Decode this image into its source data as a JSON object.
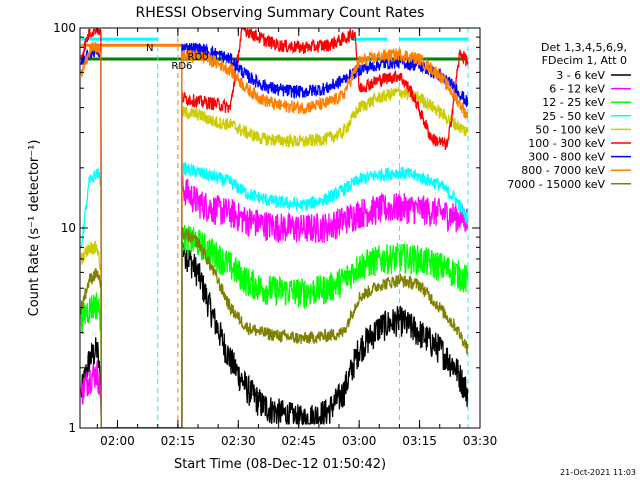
{
  "chart_data": {
    "type": "line",
    "title": "RHESSI Observing Summary Count Rates",
    "xlabel": "Start Time (08-Dec-12 01:50:42)",
    "ylabel": "Count Rate (s⁻¹ detector⁻¹)",
    "x_ticks": [
      "02:00",
      "02:15",
      "02:30",
      "02:45",
      "03:00",
      "03:15",
      "03:30"
    ],
    "xlim": [
      "01:50:42",
      "03:30:00"
    ],
    "y_scale": "log",
    "ylim": [
      1,
      100
    ],
    "y_ticks": [
      "1",
      "10",
      "100"
    ],
    "legend_header": [
      "Det 1,3,4,5,6,9,",
      "FDecim 1, Att 0"
    ],
    "legend_position": "right",
    "timestamp": "21-Oct-2021 11:03",
    "grid": false,
    "annotations": [
      {
        "text": "N",
        "time": "02:08"
      },
      {
        "text": "RD6",
        "time": "02:16"
      },
      {
        "text": "RD0",
        "time": "02:20"
      }
    ],
    "orbit_markers": [
      {
        "time": "02:10",
        "color": "#00ffff",
        "style": "dashed"
      },
      {
        "time": "02:15",
        "color": "#ff7f00",
        "style": "dashed"
      },
      {
        "time": "03:10",
        "color": "#00ffff",
        "style": "dashed"
      },
      {
        "time": "03:27",
        "color": "#00ffff",
        "style": "dashed"
      }
    ],
    "state_bars": [
      {
        "name": "N",
        "color": "#00ffff",
        "y": 88,
        "segments": [
          [
            "01:51",
            "02:10"
          ],
          [
            "02:58",
            "03:07"
          ],
          [
            "03:10",
            "03:27"
          ]
        ]
      },
      {
        "name": "orange",
        "color": "#ff7f00",
        "y": 82,
        "segments": [
          [
            "01:51",
            "02:16"
          ]
        ]
      },
      {
        "name": "RD",
        "color": "#008000",
        "y": 70,
        "segments": [
          [
            "01:51",
            "03:27"
          ]
        ]
      }
    ],
    "data_gaps": [
      [
        "01:58",
        "02:16"
      ]
    ],
    "series": [
      {
        "name": "3 - 6 keV",
        "color": "#000000",
        "points": [
          [
            "01:51",
            1.5
          ],
          [
            "01:53",
            2.2
          ],
          [
            "01:55",
            2.5
          ],
          [
            "01:56",
            1.5
          ],
          [
            "02:16",
            8.0
          ],
          [
            "02:20",
            6.0
          ],
          [
            "02:24",
            3.5
          ],
          [
            "02:28",
            2.2
          ],
          [
            "02:32",
            1.6
          ],
          [
            "02:36",
            1.3
          ],
          [
            "02:40",
            1.2
          ],
          [
            "02:46",
            1.1
          ],
          [
            "02:52",
            1.2
          ],
          [
            "02:56",
            1.5
          ],
          [
            "03:00",
            2.5
          ],
          [
            "03:05",
            3.2
          ],
          [
            "03:10",
            3.5
          ],
          [
            "03:15",
            3.0
          ],
          [
            "03:20",
            2.5
          ],
          [
            "03:24",
            2.0
          ],
          [
            "03:27",
            1.5
          ]
        ]
      },
      {
        "name": "6 - 12 keV",
        "color": "#ff00ff",
        "points": [
          [
            "01:51",
            1.5
          ],
          [
            "01:53",
            1.8
          ],
          [
            "01:55",
            1.9
          ],
          [
            "01:56",
            1.5
          ],
          [
            "02:16",
            16.0
          ],
          [
            "02:20",
            13.5
          ],
          [
            "02:24",
            12.5
          ],
          [
            "02:28",
            12.0
          ],
          [
            "02:32",
            11.0
          ],
          [
            "02:36",
            10.5
          ],
          [
            "02:40",
            10.2
          ],
          [
            "02:46",
            10.0
          ],
          [
            "02:52",
            10.2
          ],
          [
            "02:56",
            11.0
          ],
          [
            "03:00",
            12.0
          ],
          [
            "03:05",
            12.5
          ],
          [
            "03:10",
            12.8
          ],
          [
            "03:15",
            12.5
          ],
          [
            "03:20",
            12.0
          ],
          [
            "03:24",
            11.5
          ],
          [
            "03:27",
            11.0
          ]
        ]
      },
      {
        "name": "12 - 25 keV",
        "color": "#00ff00",
        "points": [
          [
            "01:51",
            3.5
          ],
          [
            "01:53",
            4.0
          ],
          [
            "01:55",
            4.2
          ],
          [
            "01:56",
            3.5
          ],
          [
            "02:16",
            9.0
          ],
          [
            "02:20",
            8.5
          ],
          [
            "02:24",
            7.5
          ],
          [
            "02:28",
            6.5
          ],
          [
            "02:32",
            5.5
          ],
          [
            "02:36",
            5.0
          ],
          [
            "02:40",
            4.9
          ],
          [
            "02:46",
            4.8
          ],
          [
            "02:52",
            5.0
          ],
          [
            "02:56",
            5.5
          ],
          [
            "03:00",
            6.5
          ],
          [
            "03:05",
            7.0
          ],
          [
            "03:10",
            7.2
          ],
          [
            "03:15",
            7.0
          ],
          [
            "03:20",
            6.5
          ],
          [
            "03:24",
            6.0
          ],
          [
            "03:27",
            5.5
          ]
        ]
      },
      {
        "name": "25 - 50 keV",
        "color": "#00ffff",
        "points": [
          [
            "01:51",
            8.0
          ],
          [
            "01:53",
            17.0
          ],
          [
            "01:55",
            19.0
          ],
          [
            "01:56",
            17.0
          ],
          [
            "02:16",
            20.0
          ],
          [
            "02:20",
            19.0
          ],
          [
            "02:24",
            18.0
          ],
          [
            "02:28",
            17.0
          ],
          [
            "02:32",
            15.0
          ],
          [
            "02:36",
            14.0
          ],
          [
            "02:40",
            13.5
          ],
          [
            "02:46",
            13.0
          ],
          [
            "02:52",
            14.0
          ],
          [
            "02:56",
            15.5
          ],
          [
            "03:00",
            17.5
          ],
          [
            "03:05",
            18.5
          ],
          [
            "03:10",
            19.0
          ],
          [
            "03:15",
            18.0
          ],
          [
            "03:20",
            16.5
          ],
          [
            "03:24",
            14.0
          ],
          [
            "03:27",
            11.0
          ]
        ]
      },
      {
        "name": "50 - 100 keV",
        "color": "#cccc00",
        "points": [
          [
            "01:51",
            7.0
          ],
          [
            "01:53",
            8.0
          ],
          [
            "01:55",
            8.0
          ],
          [
            "01:56",
            6.0
          ],
          [
            "02:16",
            38.0
          ],
          [
            "02:20",
            37.0
          ],
          [
            "02:24",
            34.0
          ],
          [
            "02:28",
            33.0
          ],
          [
            "02:32",
            30.0
          ],
          [
            "02:36",
            28.0
          ],
          [
            "02:40",
            27.5
          ],
          [
            "02:46",
            27.0
          ],
          [
            "02:52",
            28.0
          ],
          [
            "02:56",
            30.0
          ],
          [
            "03:00",
            40.0
          ],
          [
            "03:05",
            45.0
          ],
          [
            "03:10",
            48.0
          ],
          [
            "03:15",
            45.0
          ],
          [
            "03:20",
            38.0
          ],
          [
            "03:24",
            33.0
          ],
          [
            "03:27",
            30.0
          ]
        ]
      },
      {
        "name": "100 - 300 keV",
        "color": "#ff0000",
        "points": [
          [
            "01:51",
            72.0
          ],
          [
            "01:53",
            95.0
          ],
          [
            "01:55",
            100.0
          ],
          [
            "01:56",
            95.0
          ],
          [
            "02:16",
            45.0
          ],
          [
            "02:20",
            43.0
          ],
          [
            "02:24",
            42.0
          ],
          [
            "02:28",
            40.0
          ],
          [
            "02:31",
            100.0
          ],
          [
            "02:36",
            88.0
          ],
          [
            "02:40",
            82.0
          ],
          [
            "02:46",
            80.0
          ],
          [
            "02:52",
            82.0
          ],
          [
            "02:56",
            88.0
          ],
          [
            "02:59",
            95.0
          ],
          [
            "03:00",
            50.0
          ],
          [
            "03:05",
            55.0
          ],
          [
            "03:10",
            58.0
          ],
          [
            "03:13",
            48.0
          ],
          [
            "03:18",
            28.0
          ],
          [
            "03:22",
            26.0
          ],
          [
            "03:25",
            75.0
          ],
          [
            "03:27",
            68.0
          ]
        ]
      },
      {
        "name": "300 - 800 keV",
        "color": "#0000ff",
        "points": [
          [
            "01:51",
            65.0
          ],
          [
            "01:53",
            75.0
          ],
          [
            "01:55",
            78.0
          ],
          [
            "01:56",
            70.0
          ],
          [
            "02:16",
            80.0
          ],
          [
            "02:20",
            79.0
          ],
          [
            "02:24",
            75.0
          ],
          [
            "02:28",
            70.0
          ],
          [
            "02:32",
            58.0
          ],
          [
            "02:36",
            52.0
          ],
          [
            "02:40",
            49.0
          ],
          [
            "02:46",
            48.0
          ],
          [
            "02:52",
            50.0
          ],
          [
            "02:56",
            55.0
          ],
          [
            "03:00",
            62.0
          ],
          [
            "03:05",
            66.0
          ],
          [
            "03:10",
            68.0
          ],
          [
            "03:15",
            65.0
          ],
          [
            "03:20",
            58.0
          ],
          [
            "03:24",
            50.0
          ],
          [
            "03:27",
            42.0
          ]
        ]
      },
      {
        "name": "800 - 7000 keV",
        "color": "#ff7f00",
        "points": [
          [
            "01:51",
            58.0
          ],
          [
            "01:53",
            78.0
          ],
          [
            "01:55",
            80.0
          ],
          [
            "01:56",
            72.0
          ],
          [
            "02:16",
            72.0
          ],
          [
            "02:20",
            73.0
          ],
          [
            "02:24",
            68.0
          ],
          [
            "02:28",
            62.0
          ],
          [
            "02:32",
            50.0
          ],
          [
            "02:36",
            44.0
          ],
          [
            "02:40",
            41.0
          ],
          [
            "02:46",
            40.0
          ],
          [
            "02:52",
            42.0
          ],
          [
            "02:56",
            46.0
          ],
          [
            "03:00",
            68.0
          ],
          [
            "03:05",
            72.0
          ],
          [
            "03:10",
            74.0
          ],
          [
            "03:15",
            70.0
          ],
          [
            "03:20",
            58.0
          ],
          [
            "03:24",
            45.0
          ],
          [
            "03:27",
            36.0
          ]
        ]
      },
      {
        "name": "7000 - 15000 keV",
        "color": "#808000",
        "points": [
          [
            "01:51",
            4.0
          ],
          [
            "01:53",
            5.5
          ],
          [
            "01:55",
            6.0
          ],
          [
            "01:56",
            5.0
          ],
          [
            "02:16",
            9.5
          ],
          [
            "02:20",
            8.5
          ],
          [
            "02:24",
            6.0
          ],
          [
            "02:28",
            4.0
          ],
          [
            "02:32",
            3.2
          ],
          [
            "02:36",
            3.0
          ],
          [
            "02:40",
            2.9
          ],
          [
            "02:46",
            2.8
          ],
          [
            "02:52",
            2.9
          ],
          [
            "02:56",
            3.0
          ],
          [
            "03:00",
            4.5
          ],
          [
            "03:05",
            5.2
          ],
          [
            "03:10",
            5.5
          ],
          [
            "03:15",
            5.2
          ],
          [
            "03:20",
            4.0
          ],
          [
            "03:24",
            3.2
          ],
          [
            "03:27",
            2.5
          ]
        ]
      }
    ]
  }
}
